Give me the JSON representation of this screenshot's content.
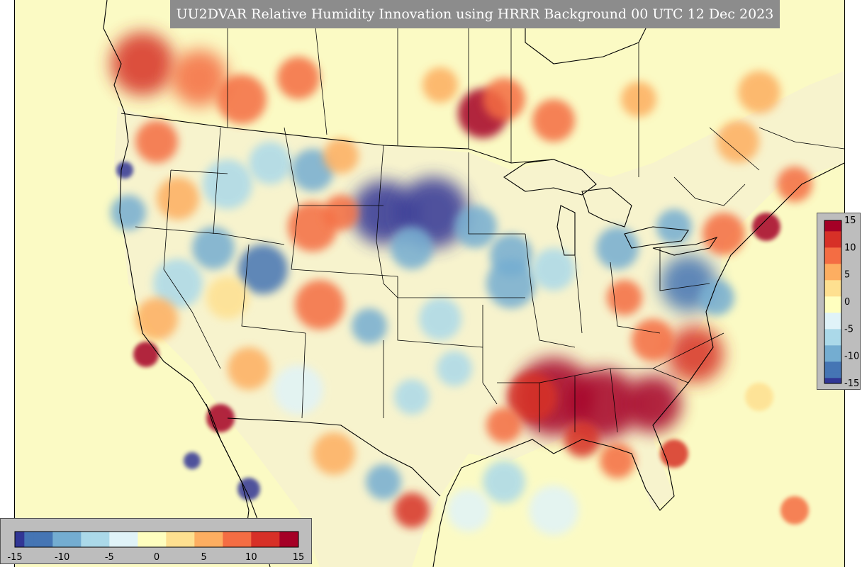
{
  "title": "UU2DVAR Relative Humidity Innovation using HRRR Background 00 UTC 12 Dec 2023",
  "colorbar": {
    "min": -15,
    "max": 15,
    "ticks_vertical": [
      "15",
      "10",
      "5",
      "0",
      "-5",
      "-10",
      "-15"
    ],
    "ticks_horizontal": [
      "-15",
      "-10",
      "-5",
      "0",
      "5",
      "10",
      "15"
    ],
    "colors": [
      "#313695",
      "#4575b4",
      "#74add1",
      "#abd9e9",
      "#e0f3f8",
      "#ffffbf",
      "#fee090",
      "#fdae61",
      "#f46d43",
      "#d73027",
      "#a50026"
    ]
  },
  "map": {
    "background_color": "#fbfac4",
    "border_color": "#000000"
  }
}
